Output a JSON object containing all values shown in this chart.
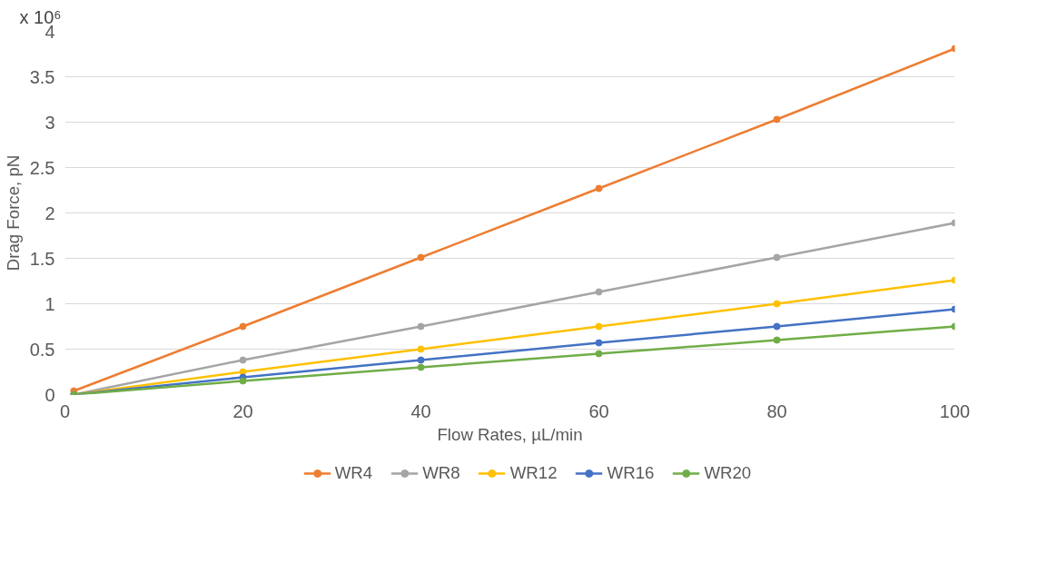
{
  "chart_data": {
    "type": "line",
    "xlabel": "Flow Rates, µL/min",
    "ylabel": "Drag Force, pN",
    "annotations": [
      "x 10⁶"
    ],
    "x": [
      1,
      20,
      40,
      60,
      80,
      100
    ],
    "series": [
      {
        "name": "WR4",
        "color": "#ed7d31",
        "values": [
          0.04,
          0.75,
          1.51,
          2.27,
          3.03,
          3.81
        ]
      },
      {
        "name": "WR8",
        "color": "#a5a5a5",
        "values": [
          0,
          0.38,
          0.75,
          1.13,
          1.51,
          1.89
        ]
      },
      {
        "name": "WR12",
        "color": "#ffc000",
        "values": [
          0,
          0.25,
          0.5,
          0.75,
          1.0,
          1.26
        ]
      },
      {
        "name": "WR16",
        "color": "#4472c4",
        "values": [
          0,
          0.19,
          0.38,
          0.57,
          0.75,
          0.94
        ]
      },
      {
        "name": "WR20",
        "color": "#70ad47",
        "values": [
          0,
          0.15,
          0.3,
          0.45,
          0.6,
          0.75
        ]
      }
    ],
    "xlim": [
      0,
      100
    ],
    "xticks": [
      0,
      20,
      40,
      60,
      80,
      100
    ],
    "ylim": [
      0,
      4
    ],
    "yticks": [
      0,
      0.5,
      1,
      1.5,
      2,
      2.5,
      3,
      3.5,
      4
    ],
    "grid": "y",
    "legend": "bottom",
    "marker": "circle",
    "line_style": "solid"
  }
}
